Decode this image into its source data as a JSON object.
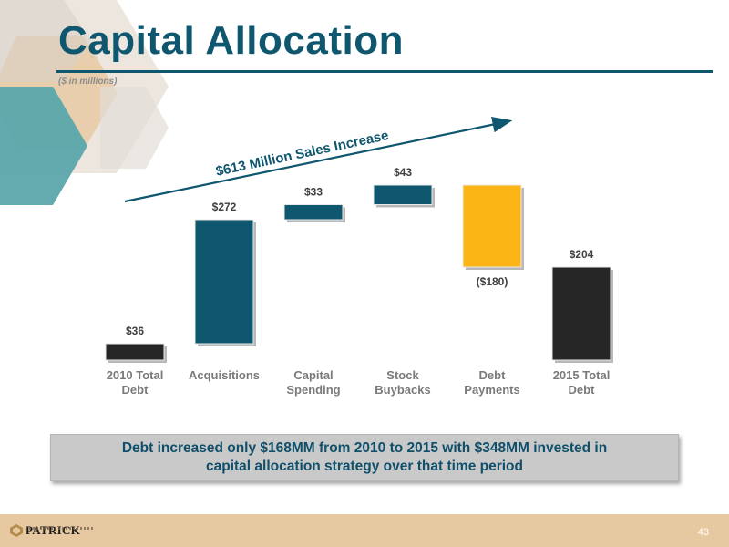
{
  "header": {
    "title": "Capital Allocation",
    "subtitle": "($ in millions)"
  },
  "chart_data": {
    "type": "bar",
    "subtype": "waterfall",
    "categories": [
      "2010 Total\nDebt",
      "Acquisitions",
      "Capital\nSpending",
      "Stock\nBuybacks",
      "Debt\nPayments",
      "2015 Total\nDebt"
    ],
    "values": [
      36,
      272,
      33,
      43,
      -180,
      204
    ],
    "value_labels": [
      "$36",
      "$272",
      "$33",
      "$43",
      "($180)",
      "$204"
    ],
    "bar_kinds": [
      "total",
      "increase",
      "increase",
      "increase",
      "decrease",
      "total"
    ],
    "colors": {
      "total": "#262626",
      "increase": "#0f566f",
      "decrease": "#fbb615"
    },
    "annotation": "$613 Million Sales Increase",
    "ylim": [
      0,
      390
    ]
  },
  "callout": {
    "text": "Debt increased only $168MM from 2010 to 2015 with $348MM invested in\ncapital allocation strategy over that time period"
  },
  "footer": {
    "logo_text": "PATRICK",
    "page_number": "43"
  }
}
